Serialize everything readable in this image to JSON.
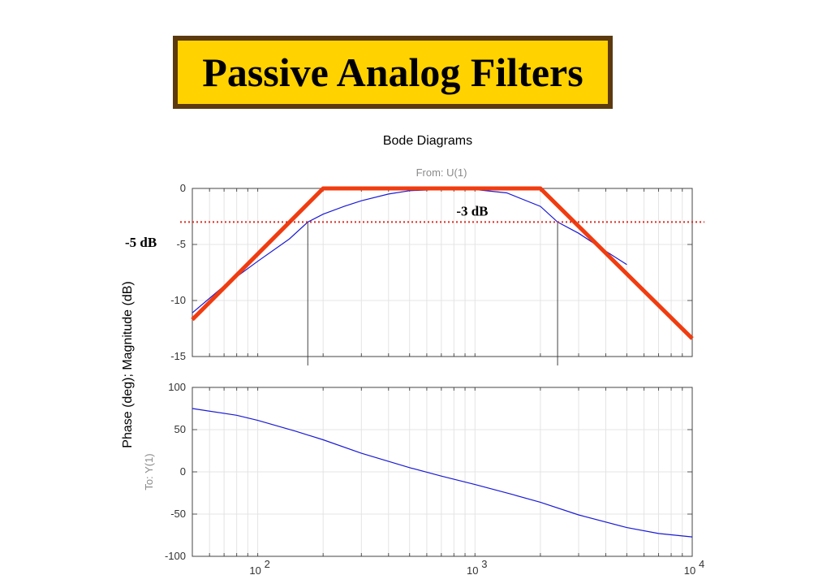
{
  "title": "Passive Analog Filters",
  "chart_data": {
    "type": "line",
    "title": "Bode Diagrams",
    "from_label": "From: U(1)",
    "to_label": "To: Y(1)",
    "ylabel": "Phase (deg); Magnitude (dB)",
    "x_scale": "log",
    "xlim": [
      50,
      10000
    ],
    "x_tick_labels": [
      {
        "base": "10",
        "exp": "2",
        "value": 100
      },
      {
        "base": "10",
        "exp": "3",
        "value": 1000
      },
      {
        "base": "10",
        "exp": "4",
        "value": 10000
      }
    ],
    "magnitude": {
      "ylim": [
        -15,
        0
      ],
      "yticks": [
        0,
        -5,
        -10,
        -15
      ],
      "series": [
        {
          "style": "thin-blue",
          "x": [
            50,
            70,
            100,
            140,
            170,
            200,
            250,
            300,
            400,
            500,
            700,
            1000,
            1400,
            2000,
            2400,
            3000,
            4000,
            5000
          ],
          "y": [
            -11.1,
            -8.7,
            -6.5,
            -4.5,
            -3.0,
            -2.3,
            -1.6,
            -1.1,
            -0.5,
            -0.2,
            -0.1,
            -0.1,
            -0.4,
            -1.6,
            -3.0,
            -4.0,
            -5.6,
            -6.8
          ]
        },
        {
          "style": "thick-red-asymptote",
          "x": [
            50,
            200,
            2000,
            10000
          ],
          "y": [
            -11.7,
            0,
            0,
            -13.4
          ]
        }
      ],
      "reference_line": {
        "y": -3,
        "style": "red-dotted"
      },
      "cutoff_markers": [
        170,
        2400
      ],
      "annotations": [
        {
          "text": "-3 dB",
          "x": 1150,
          "y": -2.0
        },
        {
          "text": "-5 dB",
          "x": 40,
          "y": -4.8
        }
      ]
    },
    "phase": {
      "ylim": [
        -100,
        100
      ],
      "yticks": [
        100,
        50,
        0,
        -50,
        -100
      ],
      "series": [
        {
          "style": "thin-blue",
          "x": [
            50,
            80,
            100,
            150,
            200,
            300,
            500,
            700,
            1000,
            1500,
            2000,
            3000,
            5000,
            7000,
            10000
          ],
          "y": [
            75,
            67,
            61,
            48,
            38,
            22,
            5,
            -5,
            -15,
            -27,
            -36,
            -51,
            -66,
            -73,
            -77
          ]
        }
      ]
    }
  }
}
